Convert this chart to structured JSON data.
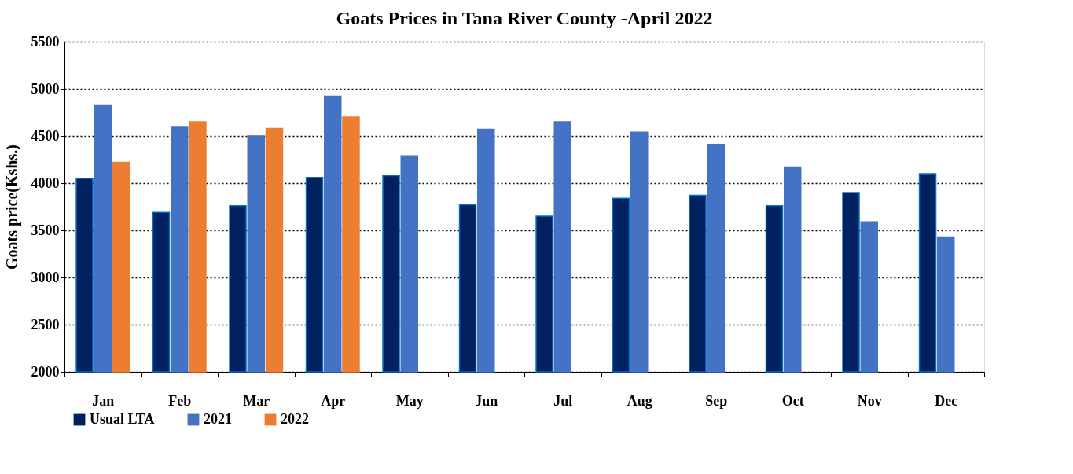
{
  "chart_data": {
    "type": "bar",
    "title": "Goats Prices in Tana River County -April 2022",
    "ylabel": "Goats price(Kshs.)",
    "categories": [
      "Jan",
      "Feb",
      "Mar",
      "Apr",
      "May",
      "Jun",
      "Jul",
      "Aug",
      "Sep",
      "Oct",
      "Nov",
      "Dec"
    ],
    "series": [
      {
        "name": "Usual LTA",
        "color": "#002060",
        "values": [
          4050,
          3690,
          3760,
          4060,
          4080,
          3770,
          3650,
          3840,
          3870,
          3760,
          3900,
          4100
        ]
      },
      {
        "name": "2021",
        "color": "#4472c4",
        "values": [
          4830,
          4600,
          4500,
          4920,
          4290,
          4570,
          4650,
          4540,
          4410,
          4170,
          3590,
          3430
        ]
      },
      {
        "name": "2022",
        "color": "#ed7d31",
        "values": [
          4220,
          4650,
          4580,
          4700,
          null,
          null,
          null,
          null,
          null,
          null,
          null,
          null
        ]
      }
    ],
    "ylim": [
      2000,
      5500
    ],
    "yticks": [
      2000,
      2500,
      3000,
      3500,
      4000,
      4500,
      5000,
      5500
    ],
    "grid": "y",
    "legend": "bottom left"
  }
}
